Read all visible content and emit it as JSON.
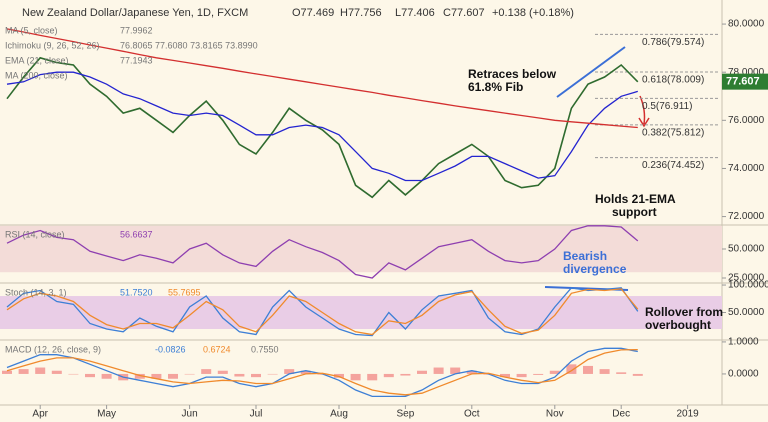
{
  "chart_data": [
    {
      "type": "line",
      "title": "New Zealand Dollar/Japanese Yen, 1D, FXCM",
      "ohlc": [
        "O77.469",
        "H77.756",
        "L77.406",
        "C77.607",
        "+0.138 (+0.18%)"
      ],
      "indicator_legend": [
        {
          "text": "MA (5, close)",
          "value": "77.9962"
        },
        {
          "text": "Ichimoku (9, 26, 52, 26)",
          "value": "76.8065 77.6080 73.8165 73.8990"
        },
        {
          "text": "EMA (21, close)",
          "value": "77.1943"
        },
        {
          "text": "MA (200, close)"
        }
      ],
      "categories": [
        null,
        null,
        "Apr",
        null,
        null,
        null,
        "May",
        null,
        null,
        null,
        null,
        "Jun",
        null,
        null,
        null,
        "Jul",
        null,
        null,
        null,
        null,
        "Aug",
        null,
        null,
        null,
        "Sep",
        null,
        null,
        null,
        "Oct",
        null,
        null,
        null,
        null,
        "Nov",
        null,
        null,
        null,
        "Dec",
        null,
        null,
        null,
        "2019"
      ],
      "series": [
        {
          "name": "Close",
          "color": "#2f6b2f",
          "values": [
            76.9,
            77.8,
            78.6,
            78.4,
            78.3,
            77.5,
            77.0,
            76.3,
            76.5,
            76.0,
            75.5,
            76.2,
            76.8,
            76.0,
            75.0,
            74.6,
            75.5,
            76.5,
            76.0,
            75.6,
            75.0,
            73.3,
            72.8,
            73.5,
            72.9,
            73.5,
            74.2,
            74.6,
            75.0,
            74.5,
            73.5,
            73.2,
            73.3,
            74.0,
            76.5,
            77.5,
            77.8,
            78.3,
            77.6,
            null,
            null,
            null
          ]
        },
        {
          "name": "EMA (21, close)",
          "color": "#2424d0",
          "values": [
            77.5,
            77.6,
            77.9,
            78.0,
            78.0,
            77.8,
            77.5,
            77.1,
            76.9,
            76.6,
            76.3,
            76.2,
            76.3,
            76.2,
            75.8,
            75.4,
            75.4,
            75.7,
            75.8,
            75.7,
            75.4,
            74.7,
            74.0,
            73.8,
            73.5,
            73.5,
            73.8,
            74.1,
            74.5,
            74.5,
            74.2,
            73.9,
            73.6,
            73.7,
            74.7,
            75.8,
            76.5,
            77.0,
            77.2,
            null,
            null,
            null
          ]
        },
        {
          "name": "MA (200, close)",
          "color": "#d32f2f",
          "values": [
            79.8,
            79.67,
            79.53,
            79.4,
            79.27,
            79.13,
            79.0,
            78.87,
            78.73,
            78.6,
            78.49,
            78.38,
            78.27,
            78.16,
            78.04,
            77.93,
            77.82,
            77.71,
            77.6,
            77.49,
            77.38,
            77.27,
            77.16,
            77.04,
            76.93,
            76.82,
            76.71,
            76.6,
            76.5,
            76.4,
            76.3,
            76.2,
            76.1,
            76.0,
            75.94,
            75.88,
            75.82,
            75.76,
            75.7,
            null,
            null,
            null
          ]
        }
      ],
      "ylim": [
        71.65,
        81
      ],
      "yticks": [
        {
          "value": 72,
          "label": "72.0000"
        },
        {
          "value": 74,
          "label": "74.0000"
        },
        {
          "value": 76,
          "label": "76.0000"
        },
        {
          "value": 78,
          "label": "78.0000"
        },
        {
          "value": 80,
          "label": "80.0000"
        }
      ],
      "fib": [
        {
          "value": 79.574,
          "label": "0.786(79.574)"
        },
        {
          "value": 78.009,
          "label": "0.618(78.009)"
        },
        {
          "value": 76.911,
          "label": "0.5(76.911)"
        },
        {
          "value": 75.812,
          "label": "0.382(75.812)"
        },
        {
          "value": 74.452,
          "label": "0.236(74.452)"
        }
      ],
      "last_price": 77.607,
      "last_price_color": "#2e7d32",
      "annotations": [
        {
          "lines": [
            "Retraces below",
            "61.8% Fib"
          ]
        },
        {
          "lines": [
            "Holds 21-EMA",
            "support"
          ]
        }
      ],
      "grid": false
    },
    {
      "type": "line",
      "label": "RSI (14, close)",
      "label_values": [
        "56.6637"
      ],
      "band": [
        30,
        70
      ],
      "band_color": "#f3dcd8",
      "series": [
        {
          "name": "RSI",
          "color": "#8e3fb0",
          "values": [
            55,
            62,
            66,
            60,
            58,
            48,
            44,
            40,
            45,
            42,
            38,
            50,
            55,
            45,
            38,
            35,
            48,
            58,
            52,
            47,
            40,
            28,
            25,
            38,
            32,
            42,
            52,
            55,
            58,
            48,
            40,
            38,
            40,
            50,
            66,
            70,
            70,
            69,
            57,
            null,
            null,
            null
          ]
        }
      ],
      "ylim": [
        20.7,
        70.7
      ],
      "yticks": [
        {
          "value": 25,
          "label": "25.0000"
        },
        {
          "value": 50,
          "label": "50.0000"
        }
      ],
      "annotations": [
        {
          "lines": [
            "Bearish",
            "divergence"
          ]
        }
      ]
    },
    {
      "type": "line",
      "label": "Stoch (14, 3, 1)",
      "label_values": [
        "51.7520",
        "55.7695"
      ],
      "band": [
        20,
        80
      ],
      "band_color": "#e9cde6",
      "series": [
        {
          "name": "%K",
          "color": "#3d7fd6",
          "values": [
            60,
            85,
            90,
            70,
            65,
            30,
            20,
            15,
            40,
            25,
            15,
            60,
            80,
            40,
            15,
            10,
            60,
            90,
            60,
            40,
            20,
            10,
            8,
            50,
            20,
            55,
            80,
            85,
            90,
            40,
            15,
            10,
            20,
            60,
            95,
            90,
            92,
            95,
            52,
            null,
            null,
            null
          ]
        },
        {
          "name": "%D",
          "color": "#f08a2c",
          "values": [
            55,
            75,
            85,
            80,
            70,
            45,
            28,
            20,
            30,
            30,
            22,
            45,
            70,
            55,
            25,
            15,
            45,
            80,
            70,
            50,
            30,
            15,
            10,
            35,
            30,
            45,
            70,
            82,
            88,
            55,
            25,
            12,
            18,
            45,
            85,
            92,
            90,
            93,
            56,
            null,
            null,
            null
          ]
        }
      ],
      "ylim": [
        0,
        103.7
      ],
      "yticks": [
        {
          "value": 50,
          "label": "50.0000"
        },
        {
          "value": 100,
          "label": "100.0000"
        }
      ],
      "annotations": [
        {
          "lines": [
            "Rollover from",
            "overbought"
          ]
        }
      ]
    },
    {
      "type": "line",
      "label": "MACD (12, 26, close, 9)",
      "label_values": [
        "-0.0826",
        "0.6724",
        "0.7550"
      ],
      "histogram": {
        "color": "#ef6a6a",
        "values": [
          0.1,
          0.15,
          0.2,
          0.1,
          0,
          -0.1,
          -0.15,
          -0.2,
          -0.15,
          -0.15,
          -0.15,
          0,
          0.15,
          0.1,
          -0.08,
          -0.1,
          0,
          0.15,
          0.1,
          -0.02,
          -0.12,
          -0.2,
          -0.2,
          -0.1,
          -0.05,
          0.1,
          0.2,
          0.2,
          0.1,
          -0.02,
          -0.1,
          -0.1,
          -0.03,
          0.1,
          0.3,
          0.25,
          0.15,
          0.05,
          -0.06,
          null,
          null,
          null
        ]
      },
      "series": [
        {
          "name": "MACD",
          "color": "#3d7fd6",
          "values": [
            0.2,
            0.4,
            0.6,
            0.6,
            0.5,
            0.3,
            0.1,
            -0.1,
            -0.2,
            -0.3,
            -0.4,
            -0.3,
            -0.1,
            -0.1,
            -0.3,
            -0.4,
            -0.3,
            0.0,
            0.1,
            0.0,
            -0.2,
            -0.5,
            -0.7,
            -0.7,
            -0.7,
            -0.5,
            -0.2,
            0.0,
            0.1,
            0.0,
            -0.2,
            -0.3,
            -0.3,
            -0.1,
            0.4,
            0.7,
            0.8,
            0.8,
            0.7,
            null,
            null,
            null
          ]
        },
        {
          "name": "Signal",
          "color": "#f08a2c",
          "values": [
            0.1,
            0.25,
            0.4,
            0.5,
            0.5,
            0.4,
            0.25,
            0.1,
            -0.05,
            -0.15,
            -0.25,
            -0.3,
            -0.25,
            -0.2,
            -0.22,
            -0.3,
            -0.3,
            -0.15,
            0.0,
            0.02,
            -0.08,
            -0.3,
            -0.5,
            -0.6,
            -0.65,
            -0.6,
            -0.4,
            -0.2,
            0.0,
            0.02,
            -0.1,
            -0.2,
            -0.27,
            -0.2,
            0.1,
            0.45,
            0.65,
            0.75,
            0.76,
            null,
            null,
            null
          ]
        }
      ],
      "ylim": [
        -0.97,
        1.06
      ],
      "yticks": [
        {
          "value": 0,
          "label": "0.0000"
        },
        {
          "value": 1,
          "label": "1.0000"
        }
      ]
    }
  ]
}
